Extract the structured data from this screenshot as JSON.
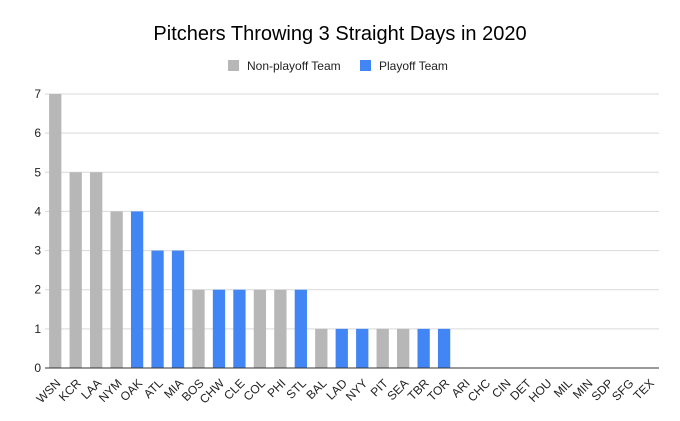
{
  "chart_data": {
    "type": "bar",
    "title": "Pitchers Throwing 3 Straight Days in 2020",
    "xlabel": "",
    "ylabel": "",
    "ylim": [
      0,
      7
    ],
    "yticks": [
      0,
      1,
      2,
      3,
      4,
      5,
      6,
      7
    ],
    "grid": true,
    "legend_position": "top",
    "legend": [
      {
        "name": "Non-playoff Team",
        "color": "#b7b7b7"
      },
      {
        "name": "Playoff Team",
        "color": "#4285f4"
      }
    ],
    "categories": [
      "WSN",
      "KCR",
      "LAA",
      "NYM",
      "OAK",
      "ATL",
      "MIA",
      "BOS",
      "CHW",
      "CLE",
      "COL",
      "PHI",
      "STL",
      "BAL",
      "LAD",
      "NYY",
      "PIT",
      "SEA",
      "TBR",
      "TOR",
      "ARI",
      "CHC",
      "CIN",
      "DET",
      "HOU",
      "MIL",
      "MIN",
      "SDP",
      "SFG",
      "TEX"
    ],
    "series": [
      {
        "name": "Non-playoff Team",
        "color": "#b7b7b7",
        "values": [
          7,
          5,
          5,
          4,
          0,
          0,
          0,
          2,
          0,
          0,
          2,
          2,
          0,
          1,
          0,
          0,
          1,
          1,
          0,
          0,
          0,
          0,
          0,
          0,
          0,
          0,
          0,
          0,
          0,
          0
        ]
      },
      {
        "name": "Playoff Team",
        "color": "#4285f4",
        "values": [
          0,
          0,
          0,
          0,
          4,
          3,
          3,
          0,
          2,
          2,
          0,
          0,
          2,
          0,
          1,
          1,
          0,
          0,
          1,
          1,
          0,
          0,
          0,
          0,
          0,
          0,
          0,
          0,
          0,
          0
        ]
      }
    ]
  }
}
